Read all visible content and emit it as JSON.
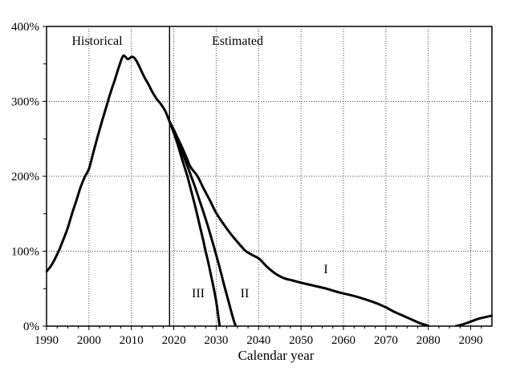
{
  "chart_data": {
    "type": "line",
    "title": "",
    "xlabel": "Calendar year",
    "ylabel": "",
    "x_range": [
      1990,
      2095
    ],
    "y_range": [
      0,
      400
    ],
    "x_tick_values": [
      1990,
      2000,
      2010,
      2020,
      2030,
      2040,
      2050,
      2060,
      2070,
      2080,
      2090
    ],
    "x_tick_labels": [
      "1990",
      "2000",
      "2010",
      "2020",
      "2030",
      "2040",
      "2050",
      "2060",
      "2070",
      "2080",
      "2090"
    ],
    "y_tick_values": [
      0,
      100,
      200,
      300,
      400
    ],
    "y_tick_labels": [
      "0%",
      "100%",
      "200%",
      "300%",
      "400%"
    ],
    "x_minor_step": 2.5,
    "y_minor_values": [
      50,
      150,
      250,
      350
    ],
    "v_gridlines": [
      2000,
      2010,
      2020,
      2030,
      2040,
      2050,
      2060,
      2070,
      2080,
      2090
    ],
    "h_gridlines": [
      100,
      200,
      300
    ],
    "grid_style": "dotted",
    "grid_color": "#444444",
    "line_color": "#000000",
    "divider_year": 2019,
    "annotations": {
      "historical": "Historical",
      "estimated": "Estimated"
    },
    "series": [
      {
        "name": "Historical",
        "label": "",
        "segments": [
          [
            [
              1990,
              73
            ],
            [
              1991,
              80
            ],
            [
              1992,
              90
            ],
            [
              1993,
              102
            ],
            [
              1994,
              116
            ],
            [
              1995,
              131
            ],
            [
              1996,
              150
            ],
            [
              1997,
              167
            ],
            [
              1998,
              185
            ],
            [
              1999,
              199
            ],
            [
              2000,
              210
            ],
            [
              2001,
              231
            ],
            [
              2002,
              252
            ],
            [
              2003,
              272
            ],
            [
              2004,
              291
            ],
            [
              2005,
              310
            ],
            [
              2006,
              327
            ],
            [
              2007,
              345
            ],
            [
              2007.6,
              355
            ],
            [
              2008.1,
              361
            ],
            [
              2008.6,
              359.5
            ],
            [
              2009.1,
              356.5
            ],
            [
              2009.6,
              357.5
            ],
            [
              2010.1,
              359.5
            ],
            [
              2010.7,
              358
            ],
            [
              2011.3,
              353
            ],
            [
              2012,
              345
            ],
            [
              2013,
              333
            ],
            [
              2014,
              323
            ],
            [
              2015,
              312
            ],
            [
              2016,
              303
            ],
            [
              2017,
              296
            ],
            [
              2018,
              287
            ],
            [
              2019,
              273
            ]
          ]
        ]
      },
      {
        "name": "Alternative I",
        "label": "I",
        "segments": [
          [
            [
              2019,
              273
            ],
            [
              2020,
              262
            ],
            [
              2021,
              250
            ],
            [
              2022,
              238
            ],
            [
              2023,
              225
            ],
            [
              2024,
              212
            ],
            [
              2025.6,
              200
            ],
            [
              2027,
              184
            ],
            [
              2028.5,
              168
            ],
            [
              2030,
              151
            ],
            [
              2032,
              134
            ],
            [
              2034,
              119
            ],
            [
              2036,
              106
            ],
            [
              2037,
              100
            ],
            [
              2038.5,
              95
            ],
            [
              2040,
              90.5
            ],
            [
              2041,
              85
            ],
            [
              2042,
              79
            ],
            [
              2044,
              70
            ],
            [
              2046,
              64
            ],
            [
              2048,
              61
            ],
            [
              2050,
              58
            ],
            [
              2053,
              54
            ],
            [
              2056,
              50
            ],
            [
              2059,
              45
            ],
            [
              2062,
              41
            ],
            [
              2065,
              36
            ],
            [
              2068,
              30
            ],
            [
              2070,
              25
            ],
            [
              2072,
              19
            ],
            [
              2074,
              14
            ],
            [
              2076,
              9
            ],
            [
              2078,
              4
            ],
            [
              2080,
              0.5
            ]
          ],
          [
            [
              2086.5,
              0
            ],
            [
              2088,
              2
            ],
            [
              2090,
              6
            ],
            [
              2092,
              10
            ],
            [
              2095,
              14
            ]
          ]
        ]
      },
      {
        "name": "Alternative II",
        "label": "II",
        "segments": [
          [
            [
              2019,
              273
            ],
            [
              2020,
              260
            ],
            [
              2021,
              247
            ],
            [
              2022,
              232
            ],
            [
              2023,
              217
            ],
            [
              2024.1,
              200
            ],
            [
              2025,
              186
            ],
            [
              2026,
              169
            ],
            [
              2027,
              152
            ],
            [
              2028,
              134
            ],
            [
              2029,
              115
            ],
            [
              2030,
              95
            ],
            [
              2031,
              74
            ],
            [
              2032,
              52
            ],
            [
              2033,
              31
            ],
            [
              2034,
              10
            ],
            [
              2034.6,
              0
            ]
          ]
        ]
      },
      {
        "name": "Alternative III",
        "label": "III",
        "segments": [
          [
            [
              2019,
              273
            ],
            [
              2020,
              258
            ],
            [
              2021,
              241
            ],
            [
              2022,
              222
            ],
            [
              2023.2,
              200
            ],
            [
              2024,
              183
            ],
            [
              2025,
              161
            ],
            [
              2026,
              137
            ],
            [
              2027,
              113
            ],
            [
              2027.5,
              100
            ],
            [
              2028,
              88
            ],
            [
              2029,
              62
            ],
            [
              2030,
              33
            ],
            [
              2030.8,
              0
            ]
          ]
        ]
      }
    ]
  }
}
